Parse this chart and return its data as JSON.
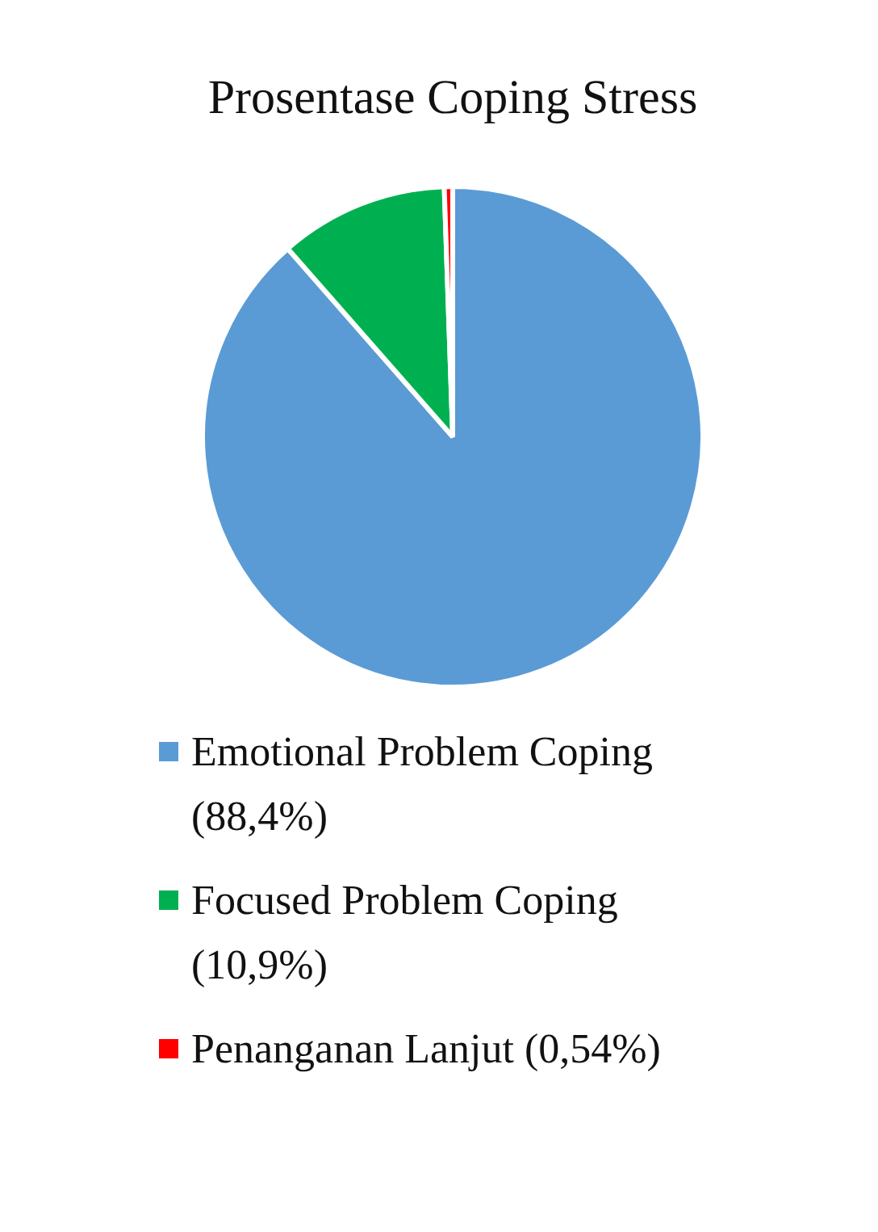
{
  "chart_data": {
    "type": "pie",
    "title": "Prosentase Coping Stress",
    "categories": [
      "Emotional Problem Coping (88,4%)",
      "Focused Problem Coping (10,9%)",
      "Penanganan Lanjut (0,54%)"
    ],
    "values": [
      88.4,
      10.9,
      0.54
    ],
    "colors": [
      "#5b9bd5",
      "#00b050",
      "#ff0000"
    ],
    "legend": "bottom"
  }
}
